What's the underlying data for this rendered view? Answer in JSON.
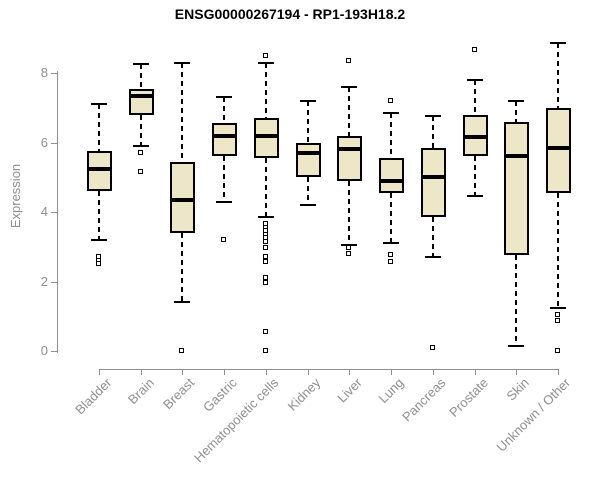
{
  "title": "ENSG00000267194 - RP1-193H18.2",
  "colors": {
    "background": "#FFFFFF",
    "title_text": "#000000",
    "axis": "#8F8F8F",
    "box_fill": "#EDE7C8",
    "box_line": "#000000"
  },
  "chart_data": {
    "type": "boxplot",
    "title": "ENSG00000267194 - RP1-193H18.2",
    "xlabel": "",
    "ylabel": "Expression",
    "ylim": [
      0,
      8.9
    ],
    "yticks": [
      0,
      2,
      4,
      6,
      8
    ],
    "grid": false,
    "legend": "none",
    "categories": [
      "Bladder",
      "Brain",
      "Breast",
      "Gastric",
      "Hematopoietic cells",
      "Kidney",
      "Liver",
      "Lung",
      "Pancreas",
      "Prostate",
      "Skin",
      "Unknown / Other"
    ],
    "boxes": [
      {
        "category": "Bladder",
        "low": 3.2,
        "q1": 4.6,
        "median": 5.25,
        "q3": 5.75,
        "high": 7.1,
        "outliers": [
          2.7,
          2.6,
          2.5
        ]
      },
      {
        "category": "Brain",
        "low": 5.9,
        "q1": 6.8,
        "median": 7.35,
        "q3": 7.55,
        "high": 8.25,
        "outliers": [
          5.7,
          5.15
        ]
      },
      {
        "category": "Breast",
        "low": 1.4,
        "q1": 3.4,
        "median": 4.35,
        "q3": 5.45,
        "high": 8.3,
        "outliers": [
          0
        ]
      },
      {
        "category": "Gastric",
        "low": 4.3,
        "q1": 5.6,
        "median": 6.2,
        "q3": 6.55,
        "high": 7.3,
        "outliers": [
          3.2
        ]
      },
      {
        "category": "Hematopoietic cells",
        "low": 3.85,
        "q1": 5.55,
        "median": 6.2,
        "q3": 6.7,
        "high": 8.3,
        "outliers": [
          8.5,
          3.65,
          3.55,
          3.45,
          3.35,
          3.25,
          3.15,
          2.95,
          2.7,
          2.55,
          2.1,
          1.95,
          0.55,
          0
        ]
      },
      {
        "category": "Kidney",
        "low": 4.2,
        "q1": 5.0,
        "median": 5.7,
        "q3": 6.0,
        "high": 7.2,
        "outliers": []
      },
      {
        "category": "Liver",
        "low": 3.05,
        "q1": 4.9,
        "median": 5.8,
        "q3": 6.2,
        "high": 7.6,
        "outliers": [
          8.35,
          2.95,
          2.8
        ]
      },
      {
        "category": "Lung",
        "low": 3.1,
        "q1": 4.55,
        "median": 4.9,
        "q3": 5.55,
        "high": 6.85,
        "outliers": [
          7.2,
          2.75,
          2.55
        ]
      },
      {
        "category": "Pancreas",
        "low": 2.7,
        "q1": 3.85,
        "median": 5.0,
        "q3": 5.85,
        "high": 6.75,
        "outliers": [
          0.1
        ]
      },
      {
        "category": "Prostate",
        "low": 4.45,
        "q1": 5.6,
        "median": 6.15,
        "q3": 6.8,
        "high": 7.8,
        "outliers": [
          8.65
        ]
      },
      {
        "category": "Skin",
        "low": 0.15,
        "q1": 2.75,
        "median": 5.6,
        "q3": 6.6,
        "high": 7.2,
        "outliers": []
      },
      {
        "category": "Unknown / Other",
        "low": 1.25,
        "q1": 4.55,
        "median": 5.85,
        "q3": 7.0,
        "high": 8.85,
        "outliers": [
          1.05,
          0.85,
          0
        ]
      }
    ]
  }
}
